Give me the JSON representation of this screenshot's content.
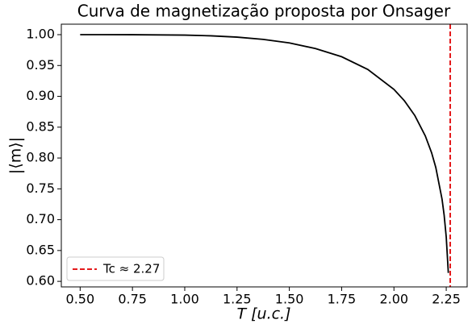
{
  "chart_data": {
    "type": "line",
    "title": "Curva de magnetização proposta por Onsager",
    "x_label": "T [u.c.]",
    "y_label": "|⟨m⟩|",
    "xlim": [
      0.41,
      2.35
    ],
    "ylim": [
      0.591,
      1.017
    ],
    "xticks": [
      {
        "value": 0.5,
        "label": "0.50"
      },
      {
        "value": 0.75,
        "label": "0.75"
      },
      {
        "value": 1.0,
        "label": "1.00"
      },
      {
        "value": 1.25,
        "label": "1.25"
      },
      {
        "value": 1.5,
        "label": "1.50"
      },
      {
        "value": 1.75,
        "label": "1.75"
      },
      {
        "value": 2.0,
        "label": "2.00"
      },
      {
        "value": 2.25,
        "label": "2.25"
      }
    ],
    "yticks": [
      {
        "value": 0.6,
        "label": "0.60"
      },
      {
        "value": 0.65,
        "label": "0.65"
      },
      {
        "value": 0.7,
        "label": "0.70"
      },
      {
        "value": 0.75,
        "label": "0.75"
      },
      {
        "value": 0.8,
        "label": "0.80"
      },
      {
        "value": 0.85,
        "label": "0.85"
      },
      {
        "value": 0.9,
        "label": "0.90"
      },
      {
        "value": 0.95,
        "label": "0.95"
      },
      {
        "value": 1.0,
        "label": "1.00"
      }
    ],
    "x": [
      0.5,
      0.75,
      1.0,
      1.125,
      1.25,
      1.375,
      1.5,
      1.625,
      1.75,
      1.875,
      2.0,
      2.05,
      2.1,
      2.15,
      2.18,
      2.2,
      2.23,
      2.24,
      2.25,
      2.26
    ],
    "series": [
      {
        "color": "#000000",
        "values": [
          1.0,
          0.99995,
          0.99928,
          0.99816,
          0.99602,
          0.99235,
          0.98656,
          0.97752,
          0.96423,
          0.94357,
          0.9113,
          0.8928,
          0.8688,
          0.8357,
          0.8085,
          0.7848,
          0.7331,
          0.7073,
          0.6718,
          0.6136
        ]
      }
    ],
    "vline": {
      "x": 2.269,
      "color": "#e41a1c",
      "name": "Tc ≈ 2.27"
    },
    "legend": "lower left"
  }
}
